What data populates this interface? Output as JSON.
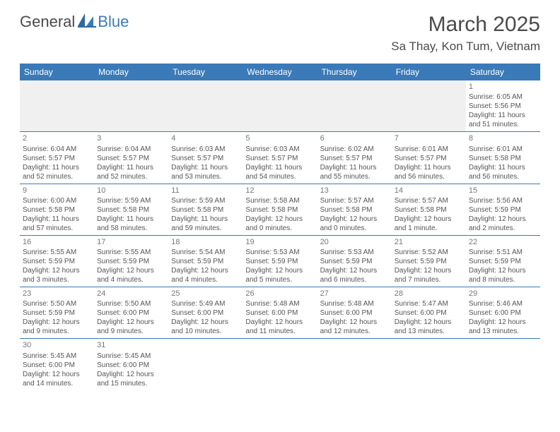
{
  "logo": {
    "dark": "General",
    "blue": "Blue"
  },
  "title": "March 2025",
  "location": "Sa Thay, Kon Tum, Vietnam",
  "colors": {
    "header_bg": "#3a7ab8",
    "header_text": "#ffffff",
    "text": "#555555",
    "title_text": "#4a4a4a",
    "divider": "#3a7ab8",
    "blank_bg": "#f0f0f0"
  },
  "day_headers": [
    "Sunday",
    "Monday",
    "Tuesday",
    "Wednesday",
    "Thursday",
    "Friday",
    "Saturday"
  ],
  "weeks": [
    [
      null,
      null,
      null,
      null,
      null,
      null,
      {
        "n": "1",
        "sr": "Sunrise: 6:05 AM",
        "ss": "Sunset: 5:56 PM",
        "dl": "Daylight: 11 hours and 51 minutes."
      }
    ],
    [
      {
        "n": "2",
        "sr": "Sunrise: 6:04 AM",
        "ss": "Sunset: 5:57 PM",
        "dl": "Daylight: 11 hours and 52 minutes."
      },
      {
        "n": "3",
        "sr": "Sunrise: 6:04 AM",
        "ss": "Sunset: 5:57 PM",
        "dl": "Daylight: 11 hours and 52 minutes."
      },
      {
        "n": "4",
        "sr": "Sunrise: 6:03 AM",
        "ss": "Sunset: 5:57 PM",
        "dl": "Daylight: 11 hours and 53 minutes."
      },
      {
        "n": "5",
        "sr": "Sunrise: 6:03 AM",
        "ss": "Sunset: 5:57 PM",
        "dl": "Daylight: 11 hours and 54 minutes."
      },
      {
        "n": "6",
        "sr": "Sunrise: 6:02 AM",
        "ss": "Sunset: 5:57 PM",
        "dl": "Daylight: 11 hours and 55 minutes."
      },
      {
        "n": "7",
        "sr": "Sunrise: 6:01 AM",
        "ss": "Sunset: 5:57 PM",
        "dl": "Daylight: 11 hours and 56 minutes."
      },
      {
        "n": "8",
        "sr": "Sunrise: 6:01 AM",
        "ss": "Sunset: 5:58 PM",
        "dl": "Daylight: 11 hours and 56 minutes."
      }
    ],
    [
      {
        "n": "9",
        "sr": "Sunrise: 6:00 AM",
        "ss": "Sunset: 5:58 PM",
        "dl": "Daylight: 11 hours and 57 minutes."
      },
      {
        "n": "10",
        "sr": "Sunrise: 5:59 AM",
        "ss": "Sunset: 5:58 PM",
        "dl": "Daylight: 11 hours and 58 minutes."
      },
      {
        "n": "11",
        "sr": "Sunrise: 5:59 AM",
        "ss": "Sunset: 5:58 PM",
        "dl": "Daylight: 11 hours and 59 minutes."
      },
      {
        "n": "12",
        "sr": "Sunrise: 5:58 AM",
        "ss": "Sunset: 5:58 PM",
        "dl": "Daylight: 12 hours and 0 minutes."
      },
      {
        "n": "13",
        "sr": "Sunrise: 5:57 AM",
        "ss": "Sunset: 5:58 PM",
        "dl": "Daylight: 12 hours and 0 minutes."
      },
      {
        "n": "14",
        "sr": "Sunrise: 5:57 AM",
        "ss": "Sunset: 5:58 PM",
        "dl": "Daylight: 12 hours and 1 minute."
      },
      {
        "n": "15",
        "sr": "Sunrise: 5:56 AM",
        "ss": "Sunset: 5:59 PM",
        "dl": "Daylight: 12 hours and 2 minutes."
      }
    ],
    [
      {
        "n": "16",
        "sr": "Sunrise: 5:55 AM",
        "ss": "Sunset: 5:59 PM",
        "dl": "Daylight: 12 hours and 3 minutes."
      },
      {
        "n": "17",
        "sr": "Sunrise: 5:55 AM",
        "ss": "Sunset: 5:59 PM",
        "dl": "Daylight: 12 hours and 4 minutes."
      },
      {
        "n": "18",
        "sr": "Sunrise: 5:54 AM",
        "ss": "Sunset: 5:59 PM",
        "dl": "Daylight: 12 hours and 4 minutes."
      },
      {
        "n": "19",
        "sr": "Sunrise: 5:53 AM",
        "ss": "Sunset: 5:59 PM",
        "dl": "Daylight: 12 hours and 5 minutes."
      },
      {
        "n": "20",
        "sr": "Sunrise: 5:53 AM",
        "ss": "Sunset: 5:59 PM",
        "dl": "Daylight: 12 hours and 6 minutes."
      },
      {
        "n": "21",
        "sr": "Sunrise: 5:52 AM",
        "ss": "Sunset: 5:59 PM",
        "dl": "Daylight: 12 hours and 7 minutes."
      },
      {
        "n": "22",
        "sr": "Sunrise: 5:51 AM",
        "ss": "Sunset: 5:59 PM",
        "dl": "Daylight: 12 hours and 8 minutes."
      }
    ],
    [
      {
        "n": "23",
        "sr": "Sunrise: 5:50 AM",
        "ss": "Sunset: 5:59 PM",
        "dl": "Daylight: 12 hours and 9 minutes."
      },
      {
        "n": "24",
        "sr": "Sunrise: 5:50 AM",
        "ss": "Sunset: 6:00 PM",
        "dl": "Daylight: 12 hours and 9 minutes."
      },
      {
        "n": "25",
        "sr": "Sunrise: 5:49 AM",
        "ss": "Sunset: 6:00 PM",
        "dl": "Daylight: 12 hours and 10 minutes."
      },
      {
        "n": "26",
        "sr": "Sunrise: 5:48 AM",
        "ss": "Sunset: 6:00 PM",
        "dl": "Daylight: 12 hours and 11 minutes."
      },
      {
        "n": "27",
        "sr": "Sunrise: 5:48 AM",
        "ss": "Sunset: 6:00 PM",
        "dl": "Daylight: 12 hours and 12 minutes."
      },
      {
        "n": "28",
        "sr": "Sunrise: 5:47 AM",
        "ss": "Sunset: 6:00 PM",
        "dl": "Daylight: 12 hours and 13 minutes."
      },
      {
        "n": "29",
        "sr": "Sunrise: 5:46 AM",
        "ss": "Sunset: 6:00 PM",
        "dl": "Daylight: 12 hours and 13 minutes."
      }
    ],
    [
      {
        "n": "30",
        "sr": "Sunrise: 5:45 AM",
        "ss": "Sunset: 6:00 PM",
        "dl": "Daylight: 12 hours and 14 minutes."
      },
      {
        "n": "31",
        "sr": "Sunrise: 5:45 AM",
        "ss": "Sunset: 6:00 PM",
        "dl": "Daylight: 12 hours and 15 minutes."
      },
      null,
      null,
      null,
      null,
      null
    ]
  ]
}
